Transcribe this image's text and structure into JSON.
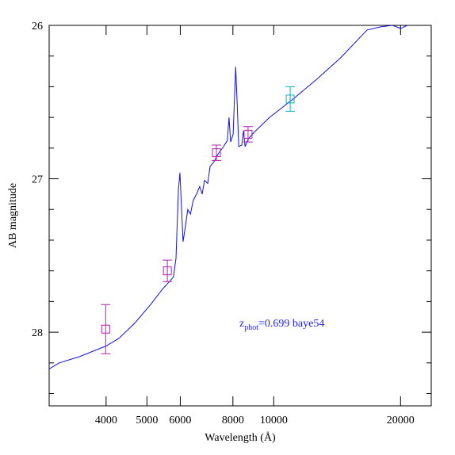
{
  "chart_data": {
    "type": "sed",
    "x_label": "Wavelength (Å)",
    "y_label": "AB magnitude",
    "annotation": {
      "main": "z",
      "sub": "phot",
      "rest": "=0.699 baye54",
      "color": "#2222ee"
    },
    "xlim": [
      2930,
      23650
    ],
    "x_log": true,
    "xticks": [
      4000,
      5000,
      6000,
      8000,
      10000,
      20000
    ],
    "ylim": [
      26,
      28.48
    ],
    "y_inverted": true,
    "yticks": [
      26,
      27,
      28
    ],
    "yminor": [
      26.2,
      26.4,
      26.6,
      26.8,
      27.2,
      27.4,
      27.6,
      27.8,
      28.2,
      28.4
    ],
    "template": {
      "color": "#1010e0",
      "x": [
        2930,
        3095,
        3450,
        4000,
        4290,
        4680,
        5100,
        5440,
        5610,
        5780,
        5860,
        5940,
        5990,
        6040,
        6090,
        6170,
        6250,
        6340,
        6440,
        6560,
        6670,
        6760,
        6850,
        6970,
        7060,
        7210,
        7370,
        7600,
        7760,
        7830,
        7900,
        8010,
        8120,
        8190,
        8260,
        8400,
        8470,
        8550,
        8700,
        8960,
        9770,
        11120,
        12670,
        14430,
        16660,
        17940,
        19140,
        20000,
        21150
      ],
      "values": [
        28.24,
        28.2,
        28.16,
        28.09,
        28.04,
        27.94,
        27.82,
        27.72,
        27.68,
        27.64,
        27.52,
        27.07,
        26.96,
        27.19,
        27.41,
        27.31,
        27.2,
        27.23,
        27.14,
        27.1,
        27.05,
        27.1,
        27.01,
        27.03,
        26.92,
        26.89,
        26.84,
        26.79,
        26.75,
        26.6,
        26.76,
        26.71,
        26.27,
        26.51,
        26.79,
        26.78,
        26.69,
        26.79,
        26.74,
        26.7,
        26.6,
        26.48,
        26.35,
        26.21,
        26.03,
        26.01,
        26.0,
        26.02,
        25.99
      ]
    },
    "series": [
      {
        "color": "#b020b0",
        "x": [
          3990,
          5590,
          7310,
          8690
        ],
        "values": [
          27.98,
          27.6,
          26.83,
          26.71
        ],
        "errors": [
          0.16,
          0.07,
          0.05,
          0.05
        ]
      },
      {
        "color": "#10b0c0",
        "x": [
          10940
        ],
        "values": [
          26.48
        ],
        "errors": [
          0.08
        ]
      }
    ]
  }
}
